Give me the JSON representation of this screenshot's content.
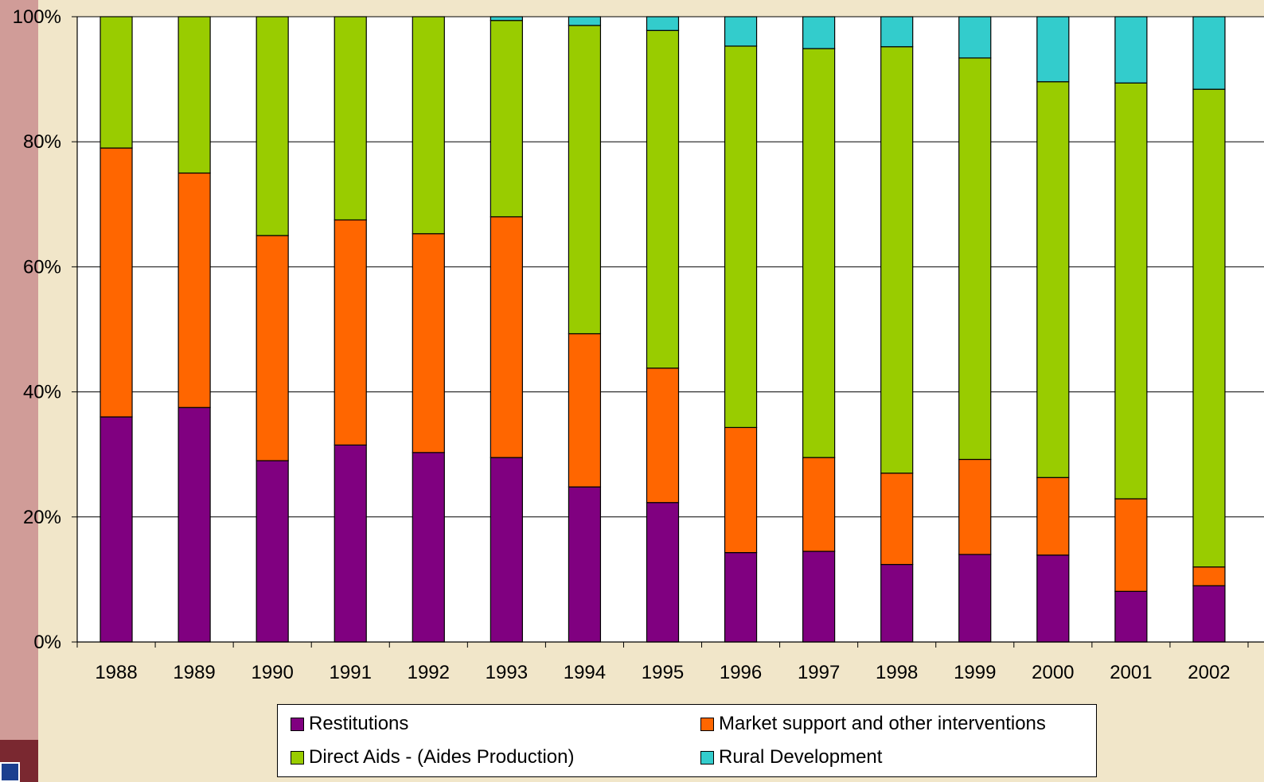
{
  "chart_data": {
    "type": "bar",
    "stacked": true,
    "normalized": true,
    "categories": [
      "1988",
      "1989",
      "1990",
      "1991",
      "1992",
      "1993",
      "1994",
      "1995",
      "1996",
      "1997",
      "1998",
      "1999",
      "2000",
      "2001",
      "2002"
    ],
    "series": [
      {
        "name": "Restitutions",
        "color": "#800080",
        "values": [
          36,
          37.5,
          29,
          31.5,
          30.3,
          29.5,
          24.8,
          22.3,
          14.3,
          14.5,
          12.4,
          14,
          13.9,
          8.1,
          9
        ]
      },
      {
        "name": "Market support and other interventions",
        "color": "#FF6600",
        "values": [
          43,
          37.5,
          36,
          36,
          35,
          38.5,
          24.5,
          21.5,
          20,
          15,
          14.6,
          15.2,
          12.4,
          14.8,
          3
        ]
      },
      {
        "name": "Direct Aids - (Aides Production)",
        "color": "#99CC00",
        "values": [
          21,
          25,
          35,
          32.5,
          34.7,
          31.4,
          49.3,
          54,
          61,
          65.4,
          68.2,
          64.2,
          63.3,
          66.5,
          76.4
        ]
      },
      {
        "name": "Rural Development",
        "color": "#33CCCC",
        "values": [
          0,
          0,
          0,
          0,
          0,
          0.6,
          1.4,
          2.2,
          4.7,
          5.1,
          4.8,
          6.6,
          10.4,
          10.6,
          11.6
        ]
      }
    ],
    "y_ticks": [
      "0%",
      "20%",
      "40%",
      "60%",
      "80%",
      "100%"
    ],
    "ylim": [
      0,
      100
    ],
    "grid": true,
    "legend_position": "bottom"
  },
  "legend": {
    "items": [
      {
        "label": "Restitutions",
        "color": "#800080"
      },
      {
        "label": "Market support and other interventions",
        "color": "#FF6600"
      },
      {
        "label": "Direct Aids - (Aides Production)",
        "color": "#99CC00"
      },
      {
        "label": "Rural Development",
        "color": "#33CCCC"
      }
    ]
  }
}
